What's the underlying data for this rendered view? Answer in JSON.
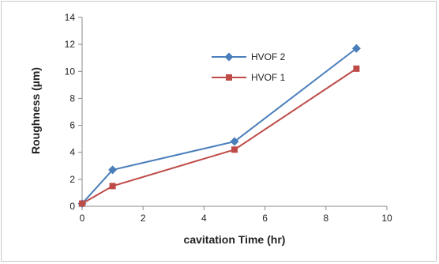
{
  "chart_data": {
    "type": "line",
    "title": "",
    "xlabel": "cavitation Time (hr)",
    "ylabel": "Roughness (µm)",
    "xlim": [
      0,
      10
    ],
    "ylim": [
      0,
      14
    ],
    "x_ticks": [
      0,
      2,
      4,
      6,
      8,
      10
    ],
    "y_ticks": [
      0,
      2,
      4,
      6,
      8,
      10,
      12,
      14
    ],
    "grid": false,
    "legend_position": "top-center",
    "series": [
      {
        "name": "HVOF 2",
        "color": "#4a7ebb",
        "marker": "diamond",
        "x": [
          0,
          1,
          5,
          9
        ],
        "y": [
          0.2,
          2.7,
          4.8,
          11.7
        ]
      },
      {
        "name": "HVOF 1",
        "color": "#be4b48",
        "marker": "square",
        "x": [
          0,
          1,
          5,
          9
        ],
        "y": [
          0.2,
          1.5,
          4.2,
          10.2
        ]
      }
    ]
  }
}
